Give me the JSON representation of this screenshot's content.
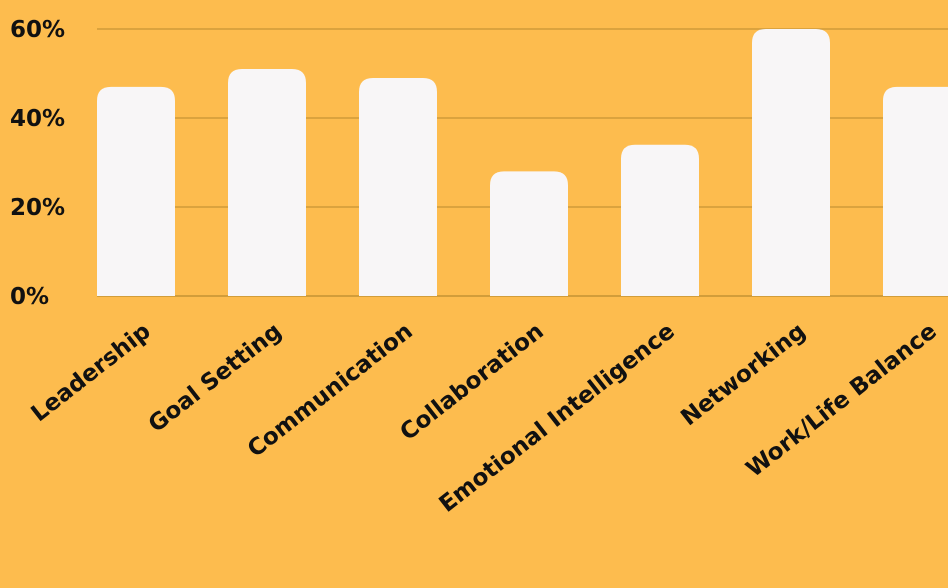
{
  "chart_data": {
    "type": "bar",
    "title": "",
    "xlabel": "",
    "ylabel": "",
    "categories": [
      "Leadership",
      "Goal Setting",
      "Communication",
      "Collaboration",
      "Emotional Intelligence",
      "Networking",
      "Work/Life Balance"
    ],
    "values": [
      47,
      51,
      49,
      28,
      34,
      60,
      47
    ],
    "ylim": [
      0,
      60
    ],
    "yticks": [
      0,
      20,
      40,
      60
    ],
    "ytick_labels": [
      "0%",
      "20%",
      "40%",
      "60%"
    ],
    "grid": true,
    "legend": "none"
  },
  "colors": {
    "background": "#FDBC4E",
    "bar": "#F8F6F7",
    "gridline": "#B98A2F",
    "text": "#111111"
  }
}
